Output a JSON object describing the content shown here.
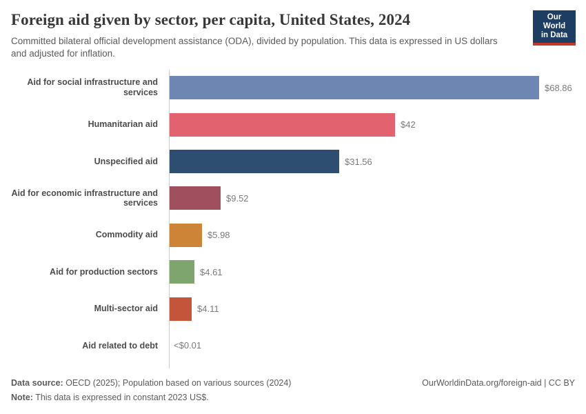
{
  "header": {
    "title": "Foreign aid given by sector, per capita, United States, 2024",
    "subtitle": "Committed bilateral official development assistance (ODA), divided by population. This data is expressed in US dollars and adjusted for inflation.",
    "logo": {
      "line1": "Our World",
      "line2": "in Data",
      "bg_color": "#1d3d63",
      "accent_color": "#c0392b"
    }
  },
  "chart_data": {
    "type": "bar",
    "orientation": "horizontal",
    "title": "Foreign aid given by sector, per capita, United States, 2024",
    "xlabel": "",
    "ylabel": "",
    "xlim": [
      0,
      68.86
    ],
    "grid": false,
    "legend": false,
    "categories": [
      "Aid for social infrastructure and services",
      "Humanitarian aid",
      "Unspecified aid",
      "Aid for economic infrastructure and services",
      "Commodity aid",
      "Aid for production sectors",
      "Multi-sector aid",
      "Aid related to debt"
    ],
    "values": [
      68.86,
      42,
      31.56,
      9.52,
      5.98,
      4.61,
      4.11,
      0.01
    ],
    "value_labels": [
      "$68.86",
      "$42",
      "$31.56",
      "$9.52",
      "$5.98",
      "$4.61",
      "$4.11",
      "<$0.01"
    ],
    "colors": [
      "#6e87b2",
      "#e2636f",
      "#2e4e71",
      "#a04f5e",
      "#cd8437",
      "#7fa56f",
      "#c4553a",
      "#999999"
    ],
    "axis_color": "#cccccc"
  },
  "footer": {
    "data_source_label": "Data source:",
    "data_source_text": " OECD (2025); Population based on various sources (2024)",
    "note_label": "Note:",
    "note_text": " This data is expressed in constant 2023 US$.",
    "link_text": "OurWorldinData.org/foreign-aid | CC BY"
  }
}
